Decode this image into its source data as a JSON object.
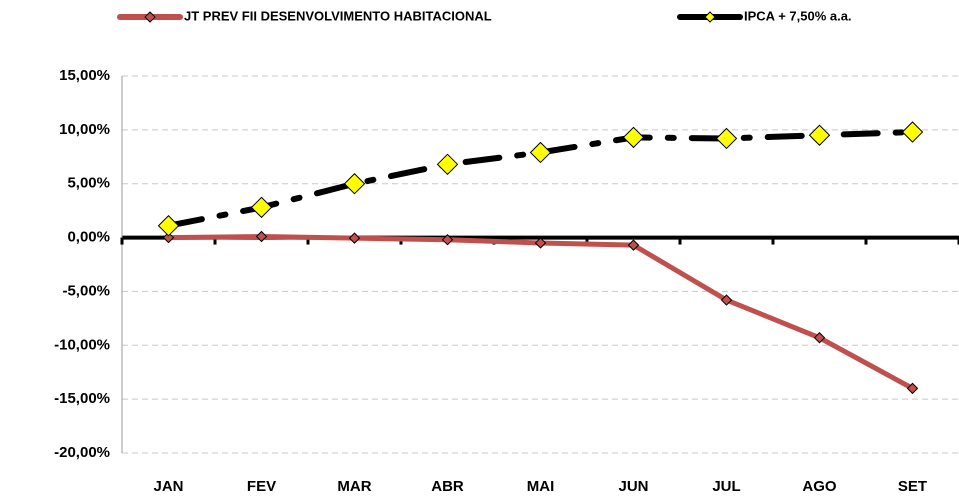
{
  "chart_data": {
    "type": "line",
    "categories": [
      "JAN",
      "FEV",
      "MAR",
      "ABR",
      "MAI",
      "JUN",
      "JUL",
      "AGO",
      "SET"
    ],
    "series": [
      {
        "name": "JT PREV FII DESENVOLVIMENTO HABITACIONAL",
        "color": "#c0504d",
        "marker_color": "#c0504d",
        "values": [
          0.0,
          0.1,
          -0.05,
          -0.2,
          -0.5,
          -0.7,
          -5.8,
          -9.3,
          -14.0
        ]
      },
      {
        "name": "IPCA + 7,50% a.a.",
        "color": "#000000",
        "marker_color": "#ffff00",
        "dashed": true,
        "values": [
          1.1,
          2.8,
          5.0,
          6.8,
          7.9,
          9.3,
          9.2,
          9.5,
          9.8
        ]
      }
    ],
    "ylim": [
      -20,
      15
    ],
    "yticks": [
      {
        "value": -20,
        "label": "-20,00%"
      },
      {
        "value": -15,
        "label": "-15,00%"
      },
      {
        "value": -10,
        "label": "-10,00%"
      },
      {
        "value": -5,
        "label": "-5,00%"
      },
      {
        "value": 0,
        "label": "0,00%"
      },
      {
        "value": 5,
        "label": "5,00%"
      },
      {
        "value": 10,
        "label": "10,00%"
      },
      {
        "value": 15,
        "label": "15,00%"
      }
    ],
    "grid": true,
    "legend": "top"
  }
}
